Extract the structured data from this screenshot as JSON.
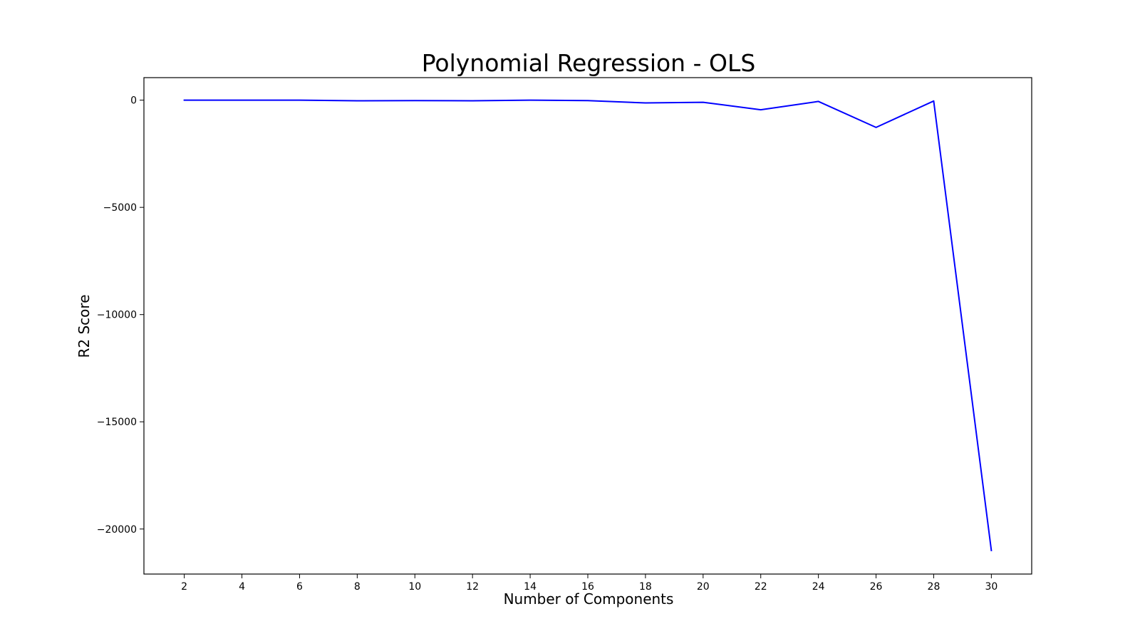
{
  "chart_data": {
    "type": "line",
    "title": "Polynomial Regression - OLS",
    "xlabel": "Number of Components",
    "ylabel": "R2 Score",
    "x_ticks": [
      "2",
      "4",
      "6",
      "8",
      "10",
      "12",
      "14",
      "16",
      "18",
      "20",
      "22",
      "24",
      "26",
      "28",
      "30"
    ],
    "y_ticks": [
      "0",
      "−5000",
      "−10000",
      "−15000",
      "−20000"
    ],
    "x_tick_values": [
      2,
      4,
      6,
      8,
      10,
      12,
      14,
      16,
      18,
      20,
      22,
      24,
      26,
      28,
      30
    ],
    "y_tick_values": [
      0,
      -5000,
      -10000,
      -15000,
      -20000
    ],
    "xlim": [
      0.6,
      31.4
    ],
    "ylim": [
      -22100,
      1050
    ],
    "grid": false,
    "series": [
      {
        "color": "#0000ff",
        "x": [
          2,
          4,
          6,
          8,
          10,
          12,
          14,
          16,
          18,
          20,
          22,
          24,
          26,
          28,
          30
        ],
        "y": [
          0,
          0,
          0,
          -30,
          -20,
          -30,
          0,
          -20,
          -130,
          -100,
          -450,
          -60,
          -1270,
          -40,
          -21000
        ]
      }
    ]
  }
}
